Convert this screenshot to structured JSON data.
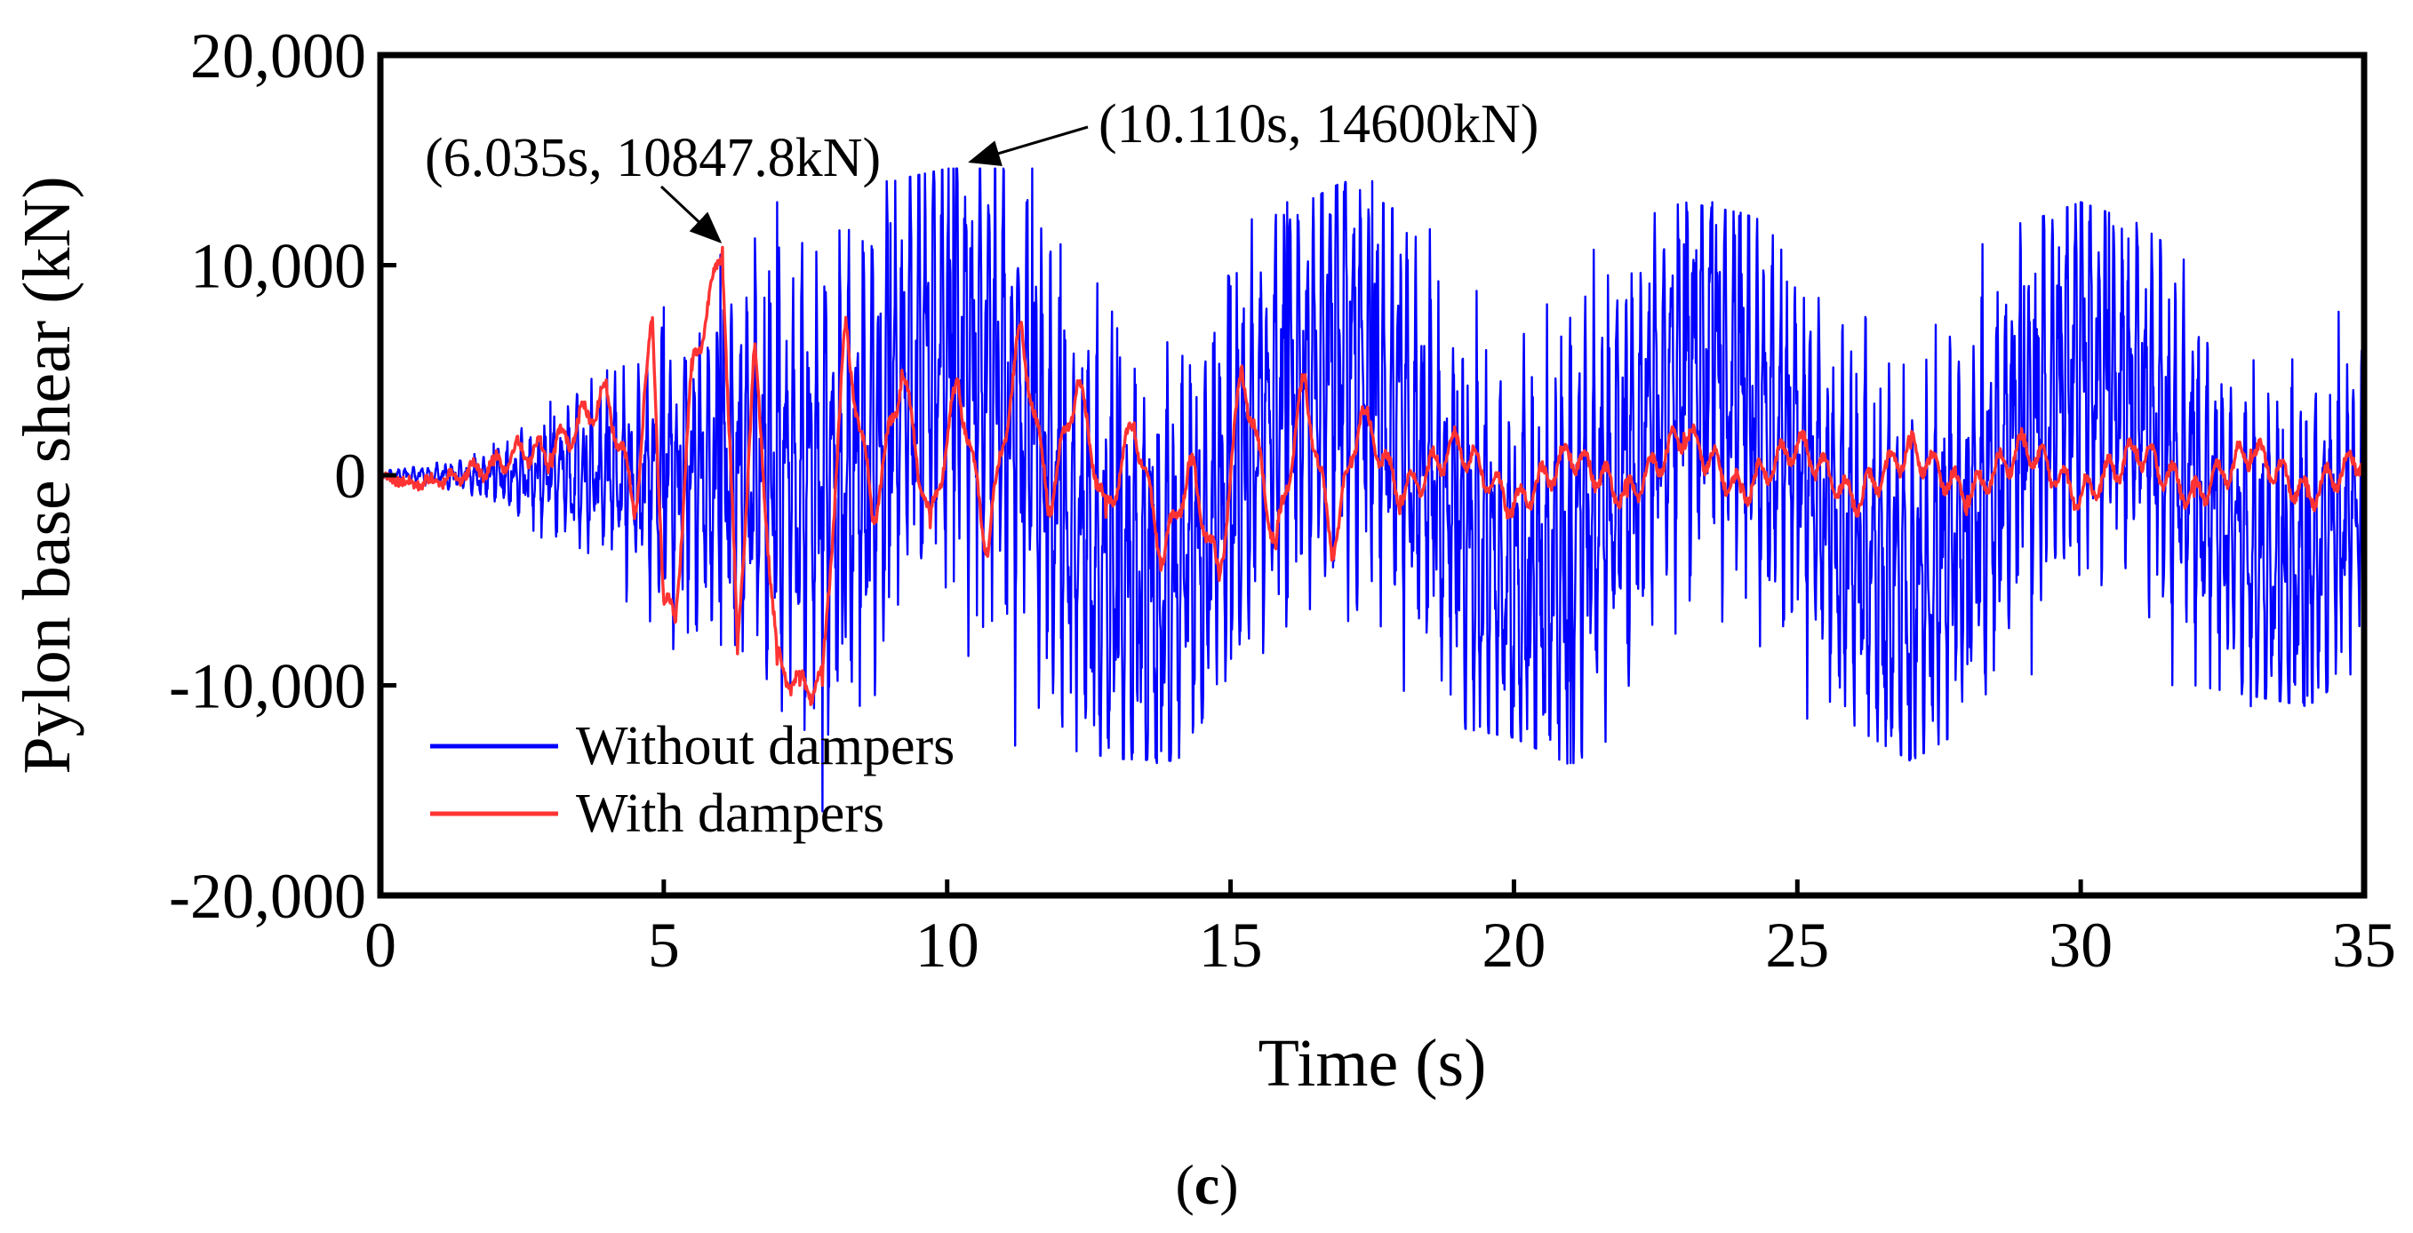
{
  "chart_data": {
    "type": "line",
    "title": "",
    "xlabel": "Time (s)",
    "ylabel": "Pylon base shear (kN)",
    "xlim": [
      0,
      35
    ],
    "ylim": [
      -20000,
      20000
    ],
    "x_ticks": [
      0,
      5,
      10,
      15,
      20,
      25,
      30,
      35
    ],
    "x_tick_labels": [
      "0",
      "5",
      "10",
      "15",
      "20",
      "25",
      "30",
      "35"
    ],
    "y_ticks": [
      -20000,
      -10000,
      0,
      10000,
      20000
    ],
    "y_tick_labels": [
      "-20,000",
      "-10,000",
      "0",
      "10,000",
      "20,000"
    ],
    "grid": false,
    "legend_position": "bottom-left",
    "series": [
      {
        "name": "Without dampers",
        "color": "#0000ff",
        "x": [
          0,
          1,
          2,
          3,
          4,
          5,
          6,
          7,
          7.8,
          9,
          10.11,
          11,
          11.5,
          12,
          13,
          13.7,
          14.5,
          15,
          16,
          17,
          17.5,
          18,
          19,
          20,
          21,
          22,
          23,
          23.5,
          24,
          25,
          26,
          27,
          28,
          29,
          30,
          30.5,
          31,
          32,
          33,
          34,
          35
        ],
        "values": [
          0,
          600,
          1500,
          3500,
          5000,
          8000,
          10500,
          13000,
          -16000,
          12000,
          14600,
          14500,
          14600,
          11000,
          7000,
          -13700,
          -11000,
          9000,
          13000,
          13500,
          14000,
          10500,
          4000,
          -11000,
          -13700,
          -8000,
          11000,
          13000,
          12500,
          4000,
          -11000,
          -13500,
          -9000,
          9000,
          13000,
          12500,
          11000,
          3000,
          -11000,
          -10500,
          6500
        ],
        "envelope": [
          [
            0,
            300
          ],
          [
            1,
            600
          ],
          [
            2,
            1500
          ],
          [
            3,
            3500
          ],
          [
            4,
            5000
          ],
          [
            5,
            8000
          ],
          [
            6,
            10500
          ],
          [
            7,
            13000
          ],
          [
            8,
            14000
          ],
          [
            9,
            14000
          ],
          [
            10,
            14600
          ],
          [
            11,
            14600
          ],
          [
            12,
            13000
          ],
          [
            13,
            13500
          ],
          [
            14,
            13600
          ],
          [
            15,
            12000
          ],
          [
            16,
            12500
          ],
          [
            17,
            14000
          ],
          [
            18,
            12500
          ],
          [
            19,
            12000
          ],
          [
            20,
            12500
          ],
          [
            21,
            13800
          ],
          [
            22,
            12000
          ],
          [
            23,
            13000
          ],
          [
            24,
            12500
          ],
          [
            25,
            11500
          ],
          [
            26,
            12000
          ],
          [
            27,
            13600
          ],
          [
            28,
            12000
          ],
          [
            29,
            12000
          ],
          [
            30,
            13000
          ],
          [
            31,
            12000
          ],
          [
            32,
            10000
          ],
          [
            33,
            10500
          ],
          [
            34,
            11000
          ],
          [
            35,
            9000
          ]
        ]
      },
      {
        "name": "With dampers",
        "color": "#ff3333",
        "x": [
          0,
          0.5,
          1,
          1.5,
          2,
          2.5,
          3,
          3.5,
          4,
          4.5,
          4.8,
          5,
          5.2,
          5.5,
          6.035,
          6.3,
          6.6,
          7,
          7.4,
          7.8,
          8.2,
          8.7,
          9.2,
          9.7,
          10.2,
          10.7,
          11.3,
          11.8,
          12.3,
          12.8,
          13.3,
          13.8,
          14.3,
          14.8,
          15.2,
          15.8,
          16.3,
          16.8,
          17.3,
          18,
          19,
          20,
          21,
          22,
          23,
          24,
          25,
          26,
          27,
          28,
          29,
          30,
          31,
          32,
          33,
          34,
          35
        ],
        "values": [
          0,
          -400,
          -300,
          100,
          500,
          1200,
          1000,
          2500,
          3800,
          -1500,
          7500,
          -6000,
          -7000,
          5000,
          10847.8,
          -8500,
          6000,
          -9000,
          -10000,
          -10000,
          7000,
          -2000,
          5000,
          -2500,
          4500,
          -3500,
          7000,
          -1500,
          4500,
          -2000,
          2500,
          -4000,
          500,
          -5000,
          5200,
          -3500,
          4500,
          -3500,
          3000,
          -1000,
          1500,
          -1500,
          1000,
          -1000,
          2000,
          -800,
          1500,
          -1200,
          1300,
          -1000,
          1400,
          -1000,
          1200,
          -1000,
          1200,
          -1000,
          1000
        ]
      }
    ],
    "annotations": [
      {
        "text": "(6.035s, 10847.8kN)",
        "x": 6.035,
        "y": 10847.8
      },
      {
        "text": "(10.110s, 14600kN)",
        "x": 10.11,
        "y": 14600
      }
    ],
    "panel_label_prefix": "(",
    "panel_label_letter": "c",
    "panel_label_suffix": ")"
  }
}
